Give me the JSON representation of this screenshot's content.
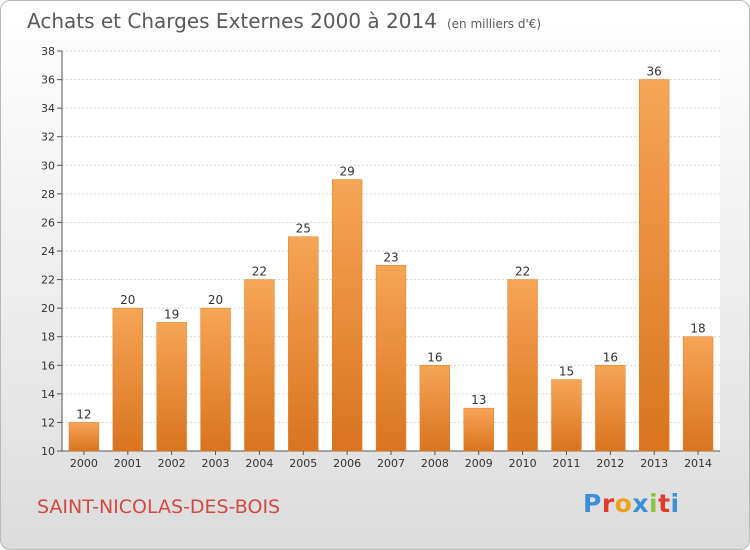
{
  "header": {
    "title": "Achats et Charges Externes 2000 à 2014",
    "unit": "(en milliers d'€)"
  },
  "footer": {
    "city": "SAINT-NICOLAS-DES-BOIS",
    "logo_text": "Proxiti"
  },
  "colors": {
    "bar_light": "#f6a556",
    "bar_dark": "#d9741f",
    "bar_stroke": "#e07b25",
    "axis": "#555555",
    "grid": "#d6d6d6",
    "city": "#d04a40",
    "logo_letters": [
      "#3b8fd6",
      "#e23a2a",
      "#f0a020",
      "#3b8fd6",
      "#8cc63f",
      "#e23a2a",
      "#3b8fd6"
    ]
  },
  "chart_data": {
    "type": "bar",
    "categories": [
      "2000",
      "2001",
      "2002",
      "2003",
      "2004",
      "2005",
      "2006",
      "2007",
      "2008",
      "2009",
      "2010",
      "2011",
      "2012",
      "2013",
      "2014"
    ],
    "values": [
      12,
      20,
      19,
      20,
      22,
      25,
      29,
      23,
      16,
      13,
      22,
      15,
      16,
      36,
      18
    ],
    "ylim": [
      10,
      38
    ],
    "yticks": [
      10,
      12,
      14,
      16,
      18,
      20,
      22,
      24,
      26,
      28,
      30,
      32,
      34,
      36,
      38
    ],
    "grid": true,
    "data_labels": true
  }
}
